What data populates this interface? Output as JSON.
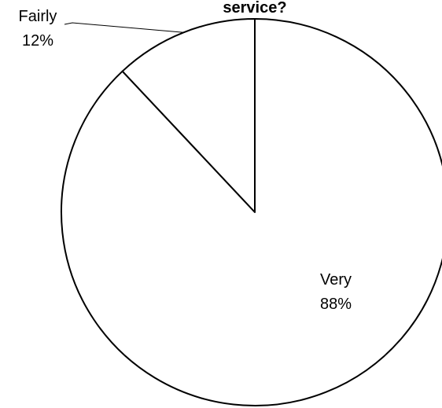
{
  "chart_data": {
    "type": "pie",
    "title": "service?",
    "start_angle_deg": 0,
    "direction": "counterclockwise",
    "slices": [
      {
        "label": "Fairly",
        "value": 12,
        "value_label": "12%"
      },
      {
        "label": "Very",
        "value": 88,
        "value_label": "88%"
      }
    ],
    "colors": {
      "fill": "#ffffff",
      "stroke": "#000000"
    }
  }
}
